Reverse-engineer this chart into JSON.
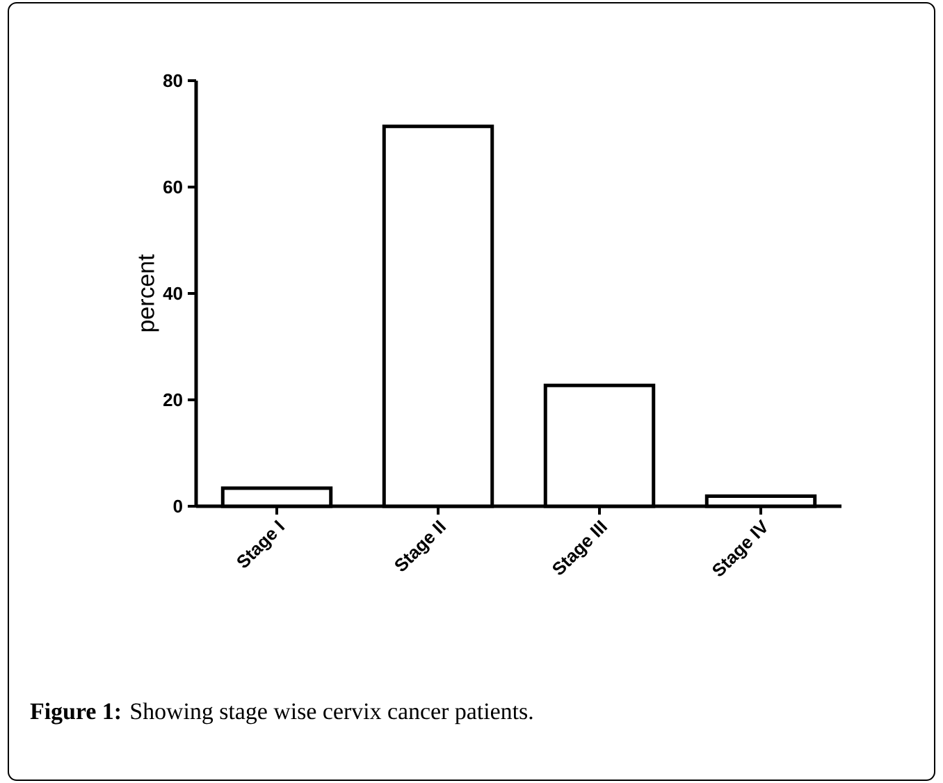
{
  "chart_data": {
    "type": "bar",
    "ylabel": "percent",
    "categories": [
      "Stage I",
      "Stage II",
      "Stage III",
      "Stage IV"
    ],
    "values": [
      3.4,
      71.4,
      22.7,
      1.9
    ],
    "color": "#000000",
    "ylim": [
      0,
      80
    ],
    "yticks": [
      0,
      20,
      40,
      60,
      80
    ],
    "grid": false,
    "annotations": [
      "**Figure 1:** Showing stage wise cervix cancer patients."
    ]
  }
}
